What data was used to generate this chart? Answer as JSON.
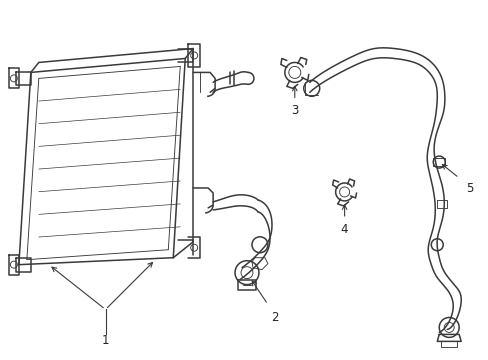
{
  "background_color": "#ffffff",
  "line_color": "#3a3a3a",
  "lw": 1.1,
  "tlw": 0.65,
  "label_fontsize": 8.5,
  "label_color": "#222222",
  "figsize": [
    4.89,
    3.6
  ],
  "dpi": 100
}
